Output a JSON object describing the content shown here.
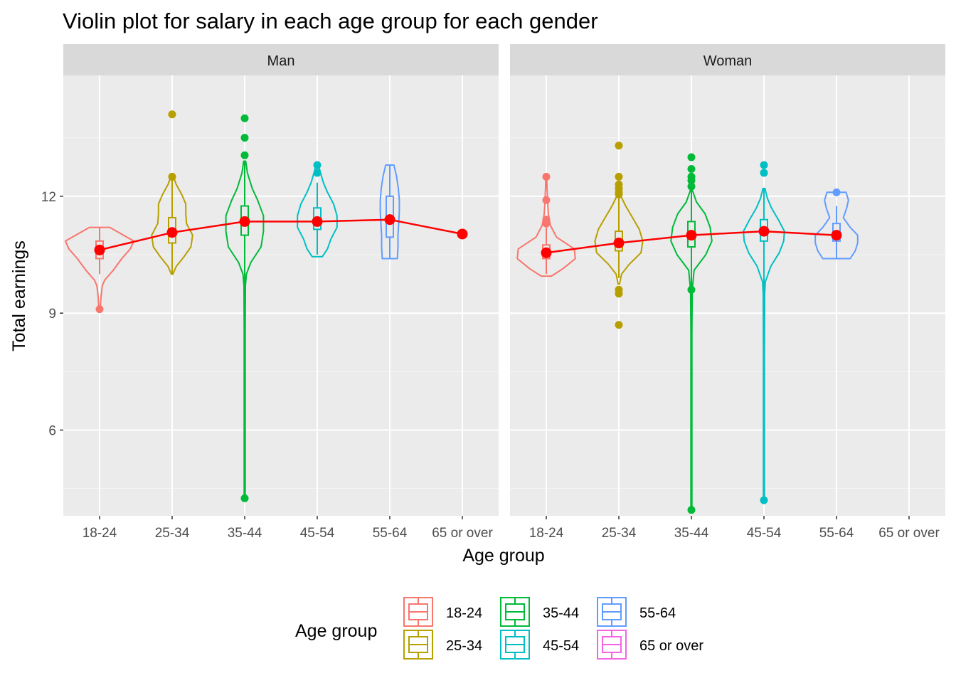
{
  "chart_data": {
    "type": "violin",
    "title": "Violin plot for salary in each age group for each gender",
    "xlabel": "Age group",
    "ylabel": "Total earnings",
    "ylim": [
      3.8,
      15.1
    ],
    "yticks": [
      6,
      9,
      12
    ],
    "grid": true,
    "legend": {
      "title": "Age group",
      "position": "bottom",
      "entries": [
        "18-24",
        "25-34",
        "35-44",
        "45-54",
        "55-64",
        "65 or over"
      ]
    },
    "colors": {
      "18-24": "#F8766D",
      "25-34": "#B79F00",
      "35-44": "#00BA38",
      "45-54": "#00BFC4",
      "55-64": "#619CFF",
      "65 or over": "#F564E3",
      "mean": "#FF0000"
    },
    "categories": [
      "18-24",
      "25-34",
      "35-44",
      "45-54",
      "55-64",
      "65 or over"
    ],
    "panels": [
      {
        "name": "Man",
        "groups": [
          {
            "age": "18-24",
            "violin": [
              [
                9.1,
                0.02
              ],
              [
                9.4,
                0.04
              ],
              [
                9.7,
                0.08
              ],
              [
                9.85,
                0.15
              ],
              [
                10.1,
                0.4
              ],
              [
                10.4,
                0.65
              ],
              [
                10.65,
                0.9
              ],
              [
                10.85,
                1.0
              ],
              [
                11.0,
                0.7
              ],
              [
                11.2,
                0.3
              ]
            ],
            "box": {
              "q1": 10.4,
              "median": 10.6,
              "q3": 10.85,
              "lo": 10.0,
              "hi": 11.2
            },
            "outliers": [
              9.1
            ],
            "mean": 10.62
          },
          {
            "age": "25-34",
            "violin": [
              [
                10.0,
                0.02
              ],
              [
                10.2,
                0.12
              ],
              [
                10.45,
                0.35
              ],
              [
                10.7,
                0.55
              ],
              [
                11.0,
                0.6
              ],
              [
                11.3,
                0.42
              ],
              [
                11.55,
                0.4
              ],
              [
                11.8,
                0.4
              ],
              [
                12.05,
                0.28
              ],
              [
                12.3,
                0.12
              ],
              [
                12.5,
                0.04
              ],
              [
                12.5,
                0.01
              ]
            ],
            "box": {
              "q1": 10.8,
              "median": 11.1,
              "q3": 11.45,
              "lo": 10.0,
              "hi": 12.5
            },
            "outliers": [
              12.5,
              14.1
            ],
            "mean": 11.07
          },
          {
            "age": "35-44",
            "violin": [
              [
                4.25,
                0.015
              ],
              [
                5.5,
                0.015
              ],
              [
                7.0,
                0.015
              ],
              [
                8.5,
                0.015
              ],
              [
                9.7,
                0.02
              ],
              [
                10.0,
                0.05
              ],
              [
                10.3,
                0.18
              ],
              [
                10.7,
                0.48
              ],
              [
                11.1,
                0.55
              ],
              [
                11.5,
                0.55
              ],
              [
                11.9,
                0.38
              ],
              [
                12.2,
                0.22
              ],
              [
                12.6,
                0.08
              ],
              [
                12.9,
                0.03
              ],
              [
                12.9,
                0.01
              ]
            ],
            "box": {
              "q1": 11.0,
              "median": 11.35,
              "q3": 11.75,
              "lo": 4.25,
              "hi": 12.9
            },
            "outliers": [
              4.25,
              13.05,
              13.5,
              14.0
            ],
            "mean": 11.35
          },
          {
            "age": "45-54",
            "violin": [
              [
                10.45,
                0.15
              ],
              [
                10.65,
                0.3
              ],
              [
                10.9,
                0.4
              ],
              [
                11.2,
                0.58
              ],
              [
                11.5,
                0.58
              ],
              [
                11.8,
                0.48
              ],
              [
                12.1,
                0.3
              ],
              [
                12.35,
                0.18
              ],
              [
                12.65,
                0.08
              ],
              [
                12.85,
                0.03
              ],
              [
                12.85,
                0.01
              ]
            ],
            "box": {
              "q1": 11.15,
              "median": 11.35,
              "q3": 11.7,
              "lo": 10.5,
              "hi": 12.35
            },
            "outliers": [
              12.6,
              12.8
            ],
            "mean": 11.35
          },
          {
            "age": "55-64",
            "violin": [
              [
                10.4,
                0.22
              ],
              [
                10.7,
                0.24
              ],
              [
                11.0,
                0.24
              ],
              [
                11.3,
                0.26
              ],
              [
                11.6,
                0.28
              ],
              [
                11.9,
                0.28
              ],
              [
                12.2,
                0.25
              ],
              [
                12.5,
                0.2
              ],
              [
                12.8,
                0.12
              ]
            ],
            "box": {
              "q1": 10.95,
              "median": 11.4,
              "q3": 12.0,
              "lo": 10.4,
              "hi": 12.8
            },
            "outliers": [],
            "mean": 11.4
          },
          {
            "age": "65 or over",
            "violin": [],
            "box": null,
            "outliers": [],
            "mean": 11.03
          }
        ]
      },
      {
        "name": "Woman",
        "groups": [
          {
            "age": "18-24",
            "violin": [
              [
                9.95,
                0.15
              ],
              [
                10.15,
                0.5
              ],
              [
                10.4,
                0.85
              ],
              [
                10.65,
                0.82
              ],
              [
                10.95,
                0.3
              ],
              [
                11.25,
                0.12
              ],
              [
                11.55,
                0.06
              ],
              [
                11.85,
                0.04
              ],
              [
                12.25,
                0.02
              ],
              [
                12.5,
                0.01
              ]
            ],
            "box": {
              "q1": 10.4,
              "median": 10.55,
              "q3": 10.75,
              "lo": 10.0,
              "hi": 11.2
            },
            "outliers": [
              11.3,
              11.4,
              11.9,
              12.5
            ],
            "mean": 10.55
          },
          {
            "age": "25-34",
            "violin": [
              [
                9.75,
                0.02
              ],
              [
                10.0,
                0.08
              ],
              [
                10.25,
                0.3
              ],
              [
                10.55,
                0.65
              ],
              [
                10.85,
                0.7
              ],
              [
                11.15,
                0.6
              ],
              [
                11.45,
                0.4
              ],
              [
                11.75,
                0.2
              ],
              [
                12.0,
                0.06
              ],
              [
                12.1,
                0.01
              ]
            ],
            "box": {
              "q1": 10.6,
              "median": 10.85,
              "q3": 11.1,
              "lo": 9.9,
              "hi": 12.0
            },
            "outliers": [
              8.7,
              9.5,
              9.6,
              12.05,
              12.1,
              12.2,
              12.3,
              12.5,
              13.3
            ],
            "mean": 10.8
          },
          {
            "age": "35-44",
            "violin": [
              [
                3.95,
                0.015
              ],
              [
                5.5,
                0.015
              ],
              [
                7.0,
                0.015
              ],
              [
                8.5,
                0.015
              ],
              [
                9.6,
                0.025
              ],
              [
                10.1,
                0.08
              ],
              [
                10.5,
                0.42
              ],
              [
                10.85,
                0.6
              ],
              [
                11.2,
                0.55
              ],
              [
                11.55,
                0.4
              ],
              [
                11.85,
                0.15
              ],
              [
                12.1,
                0.05
              ],
              [
                12.2,
                0.01
              ]
            ],
            "box": {
              "q1": 10.7,
              "median": 11.0,
              "q3": 11.35,
              "lo": 3.95,
              "hi": 12.2
            },
            "outliers": [
              3.95,
              9.6,
              12.25,
              12.4,
              12.5,
              12.7,
              13.0
            ],
            "mean": 11.0
          },
          {
            "age": "45-54",
            "violin": [
              [
                4.2,
                0.015
              ],
              [
                6.0,
                0.015
              ],
              [
                8.0,
                0.015
              ],
              [
                9.5,
                0.02
              ],
              [
                9.8,
                0.04
              ],
              [
                10.2,
                0.2
              ],
              [
                10.55,
                0.45
              ],
              [
                10.85,
                0.58
              ],
              [
                11.1,
                0.6
              ],
              [
                11.4,
                0.42
              ],
              [
                11.7,
                0.22
              ],
              [
                11.95,
                0.1
              ],
              [
                12.2,
                0.03
              ]
            ],
            "box": {
              "q1": 10.85,
              "median": 11.1,
              "q3": 11.4,
              "lo": 4.2,
              "hi": 12.2
            },
            "outliers": [
              4.2,
              12.6,
              12.8
            ],
            "mean": 11.1
          },
          {
            "age": "55-64",
            "violin": [
              [
                10.4,
                0.4
              ],
              [
                10.6,
                0.55
              ],
              [
                10.8,
                0.62
              ],
              [
                11.0,
                0.62
              ],
              [
                11.2,
                0.4
              ],
              [
                11.45,
                0.2
              ],
              [
                11.7,
                0.3
              ],
              [
                11.9,
                0.35
              ],
              [
                12.1,
                0.28
              ]
            ],
            "box": {
              "q1": 10.85,
              "median": 11.0,
              "q3": 11.3,
              "lo": 10.4,
              "hi": 11.75
            },
            "outliers": [
              12.1
            ],
            "mean": 11.0
          },
          {
            "age": "65 or over",
            "violin": [],
            "box": null,
            "outliers": [],
            "mean": null
          }
        ]
      }
    ]
  }
}
